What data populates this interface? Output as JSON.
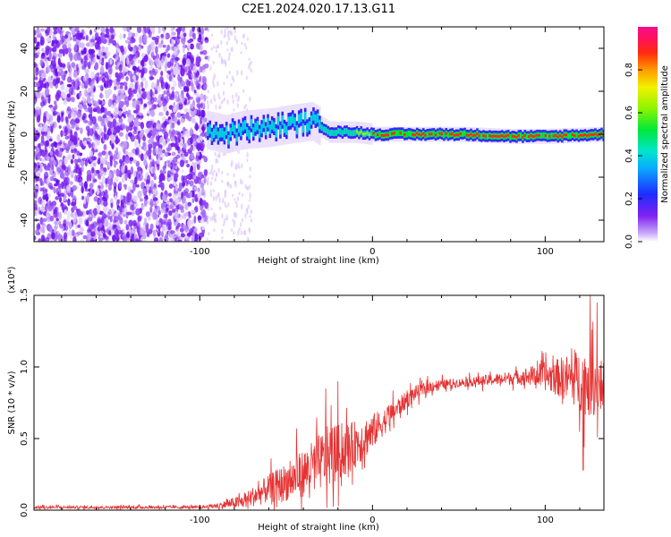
{
  "title": "C2E1.2024.020.17.13.G11",
  "colors": {
    "snr_line": "#e53333",
    "axis": "#000000",
    "background": "#ffffff"
  },
  "chart_data": [
    {
      "type": "heatmap",
      "xlabel": "Height of straight line (km)",
      "ylabel": "Frequency (Hz)",
      "xlim": [
        -196,
        134
      ],
      "ylim": [
        -50,
        50
      ],
      "x_ticks": [
        -100,
        0,
        100
      ],
      "x_tick_labels": [
        "-100",
        "0",
        "100"
      ],
      "y_ticks": [
        -40,
        -20,
        0,
        20,
        40
      ],
      "y_tick_labels": [
        "-40",
        "-20",
        "0",
        "20",
        "40"
      ],
      "colorbar": {
        "label": "Normalized spectral amplitude",
        "range": [
          0,
          1
        ],
        "ticks": [
          0.0,
          0.2,
          0.4,
          0.6,
          0.8
        ],
        "tick_labels": [
          "0.0",
          "0.2",
          "0.4",
          "0.6",
          "0.8"
        ],
        "colormap": "rainbow (white, purple, blue, cyan, green, yellow, orange, red, magenta)"
      },
      "features": {
        "noise_region_km": [
          -196,
          -96
        ],
        "sparse_noise_region_km": [
          -96,
          -70
        ],
        "signal_trace": [
          {
            "x": -96,
            "freq": 2
          },
          {
            "x": -85,
            "freq": 0
          },
          {
            "x": -75,
            "freq": 2
          },
          {
            "x": -60,
            "freq": 3
          },
          {
            "x": -45,
            "freq": 5
          },
          {
            "x": -35,
            "freq": 6
          },
          {
            "x": -25,
            "freq": 1
          },
          {
            "x": -10,
            "freq": 1
          },
          {
            "x": 0,
            "freq": 0
          },
          {
            "x": 20,
            "freq": 0
          },
          {
            "x": 50,
            "freq": 0
          },
          {
            "x": 80,
            "freq": -1
          },
          {
            "x": 100,
            "freq": -1
          },
          {
            "x": 134,
            "freq": 0
          }
        ]
      }
    },
    {
      "type": "line",
      "xlabel": "Height of straight line (km)",
      "ylabel": "SNR (10 * v/v)",
      "y_multiplier": "(x10⁴)",
      "xlim": [
        -196,
        134
      ],
      "ylim": [
        0,
        1.5
      ],
      "x_ticks": [
        -100,
        0,
        100
      ],
      "x_tick_labels": [
        "-100",
        "0",
        "100"
      ],
      "y_ticks": [
        0.0,
        0.5,
        1.0,
        1.5
      ],
      "y_tick_labels": [
        "0.0",
        "0.5",
        "1.0",
        "1.5"
      ],
      "series": [
        {
          "name": "SNR",
          "envelope": [
            {
              "x": -196,
              "mean": 0.02,
              "spread": 0.01
            },
            {
              "x": -100,
              "mean": 0.02,
              "spread": 0.01
            },
            {
              "x": -90,
              "mean": 0.03,
              "spread": 0.02
            },
            {
              "x": -75,
              "mean": 0.06,
              "spread": 0.05
            },
            {
              "x": -60,
              "mean": 0.15,
              "spread": 0.1
            },
            {
              "x": -45,
              "mean": 0.22,
              "spread": 0.15
            },
            {
              "x": -35,
              "mean": 0.3,
              "spread": 0.18
            },
            {
              "x": -25,
              "mean": 0.38,
              "spread": 0.22
            },
            {
              "x": -15,
              "mean": 0.42,
              "spread": 0.18
            },
            {
              "x": -5,
              "mean": 0.5,
              "spread": 0.15
            },
            {
              "x": 5,
              "mean": 0.6,
              "spread": 0.1
            },
            {
              "x": 15,
              "mean": 0.72,
              "spread": 0.07
            },
            {
              "x": 25,
              "mean": 0.82,
              "spread": 0.05
            },
            {
              "x": 35,
              "mean": 0.87,
              "spread": 0.04
            },
            {
              "x": 50,
              "mean": 0.89,
              "spread": 0.03
            },
            {
              "x": 70,
              "mean": 0.91,
              "spread": 0.04
            },
            {
              "x": 85,
              "mean": 0.93,
              "spread": 0.05
            },
            {
              "x": 95,
              "mean": 0.94,
              "spread": 0.08
            },
            {
              "x": 105,
              "mean": 0.93,
              "spread": 0.12
            },
            {
              "x": 115,
              "mean": 0.92,
              "spread": 0.18
            },
            {
              "x": 125,
              "mean": 0.9,
              "spread": 0.25
            },
            {
              "x": 134,
              "mean": 0.88,
              "spread": 0.2
            }
          ],
          "peaks": [
            {
              "x": -20,
              "y": 0.9
            },
            {
              "x": -27,
              "y": 0.85
            },
            {
              "x": -44,
              "y": 0.57
            },
            {
              "x": 126,
              "y": 1.5
            },
            {
              "x": 130,
              "y": 1.45
            },
            {
              "x": 122,
              "y": 0.28
            }
          ]
        }
      ]
    }
  ]
}
